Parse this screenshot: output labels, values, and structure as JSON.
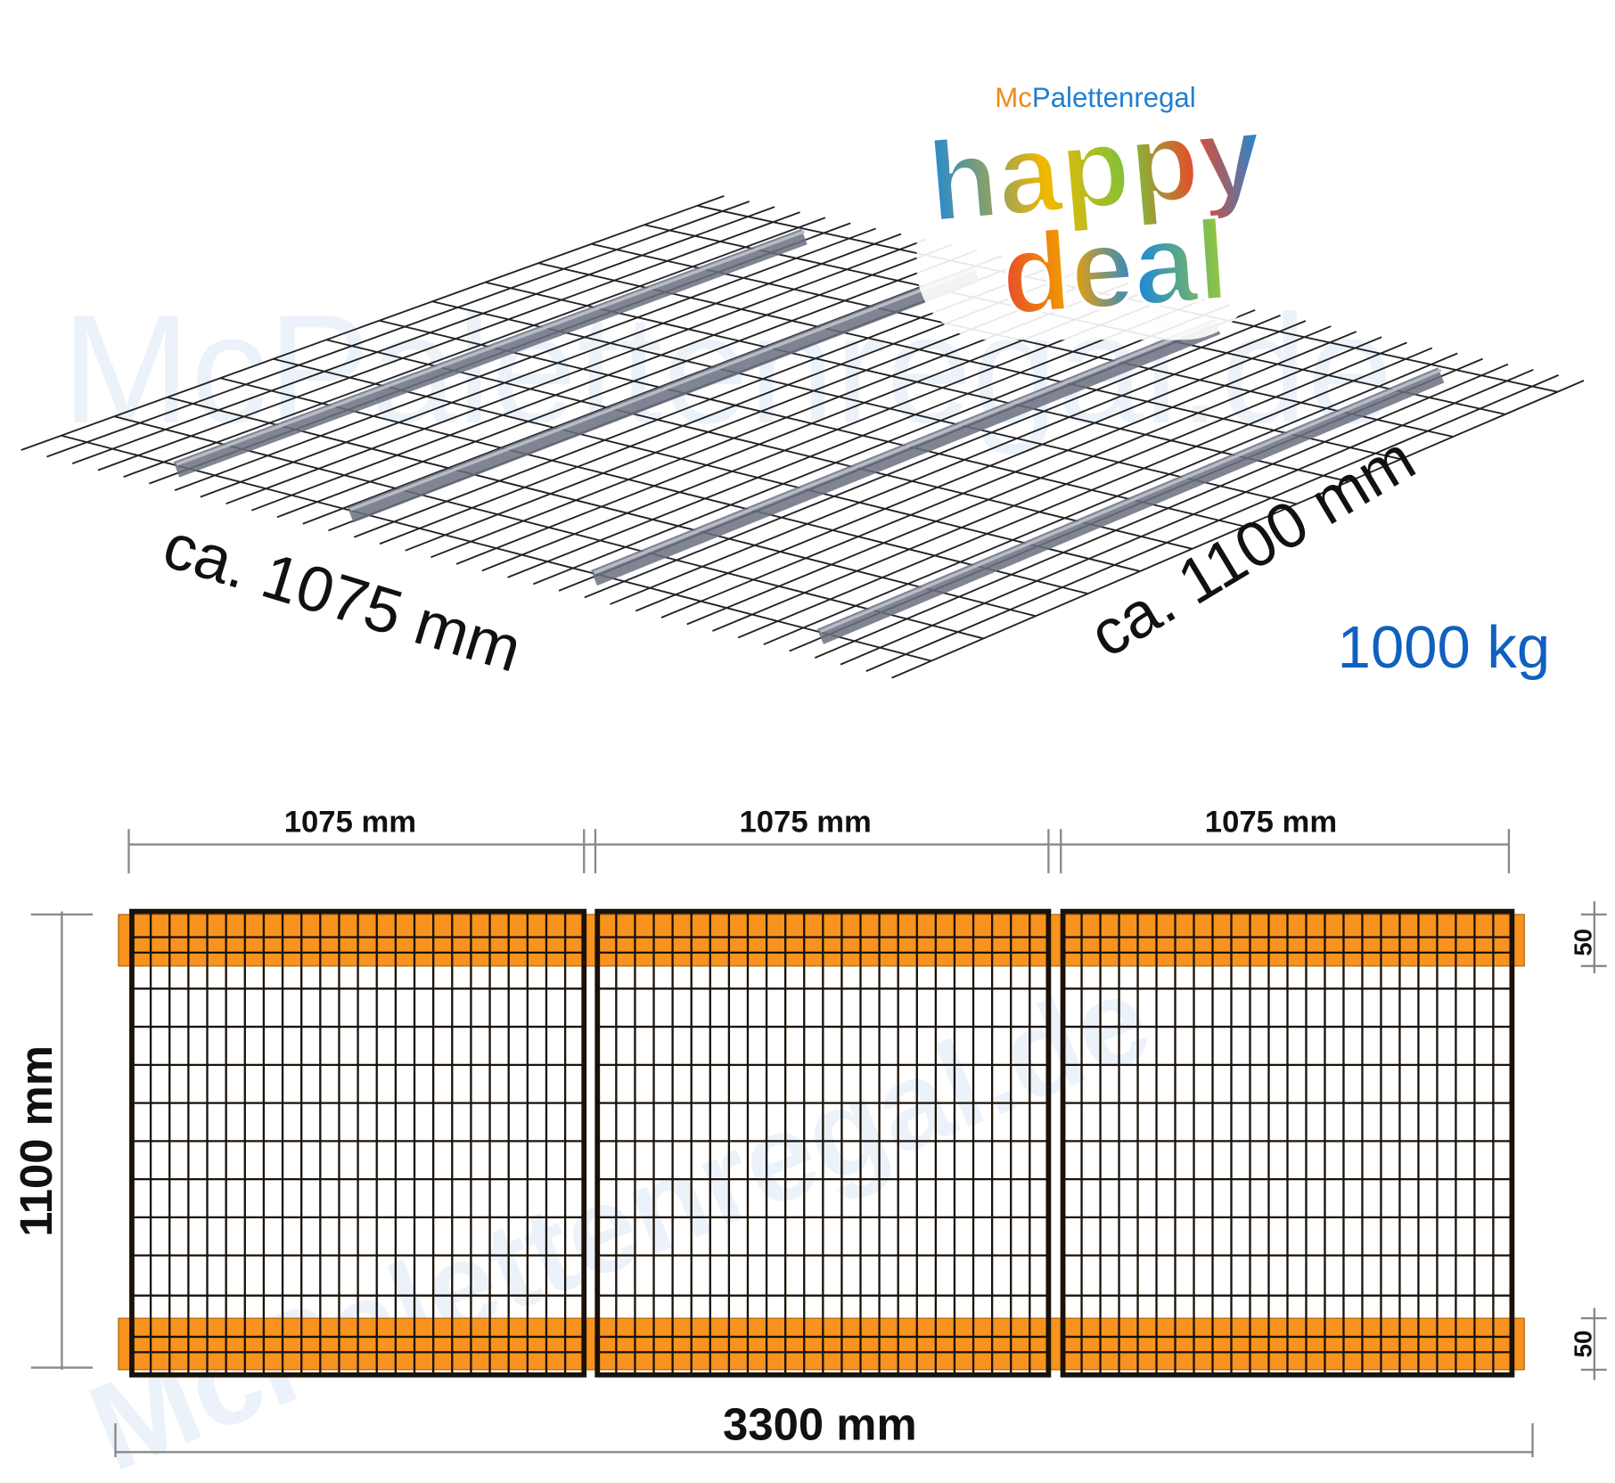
{
  "logo": {
    "prefix": "Mc",
    "name": "Palettenregal",
    "line1": "happy",
    "line2": "deal"
  },
  "watermark": "McPalettenregal.de",
  "perspective": {
    "width_label": "ca. 1075 mm",
    "depth_label": "ca. 1100 mm",
    "load_label": "1000 kg"
  },
  "plan": {
    "panel_labels": [
      "1075 mm",
      "1075 mm",
      "1075 mm"
    ],
    "total_label": "3300 mm",
    "depth_label": "1100 mm",
    "beam_labels": [
      "50",
      "50"
    ]
  }
}
